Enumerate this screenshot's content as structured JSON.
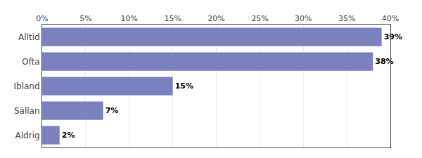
{
  "chart_data": {
    "type": "bar",
    "orientation": "horizontal",
    "categories": [
      "Alltid",
      "Ofta",
      "Ibland",
      "Sällan",
      "Aldrig"
    ],
    "values": [
      39,
      38,
      15,
      7,
      2
    ],
    "value_labels": [
      "39%",
      "38%",
      "15%",
      "7%",
      "2%"
    ],
    "data_labels": true,
    "color": "#7b80bf",
    "xlim": [
      0,
      40
    ],
    "xticks": [
      {
        "value": 0,
        "label": "0%"
      },
      {
        "value": 5,
        "label": "5%"
      },
      {
        "value": 10,
        "label": "10%"
      },
      {
        "value": 15,
        "label": "15%"
      },
      {
        "value": 20,
        "label": "20%"
      },
      {
        "value": 25,
        "label": "25%"
      },
      {
        "value": 30,
        "label": "30%"
      },
      {
        "value": 35,
        "label": "35%"
      },
      {
        "value": 40,
        "label": "40%"
      }
    ],
    "grid": true
  }
}
